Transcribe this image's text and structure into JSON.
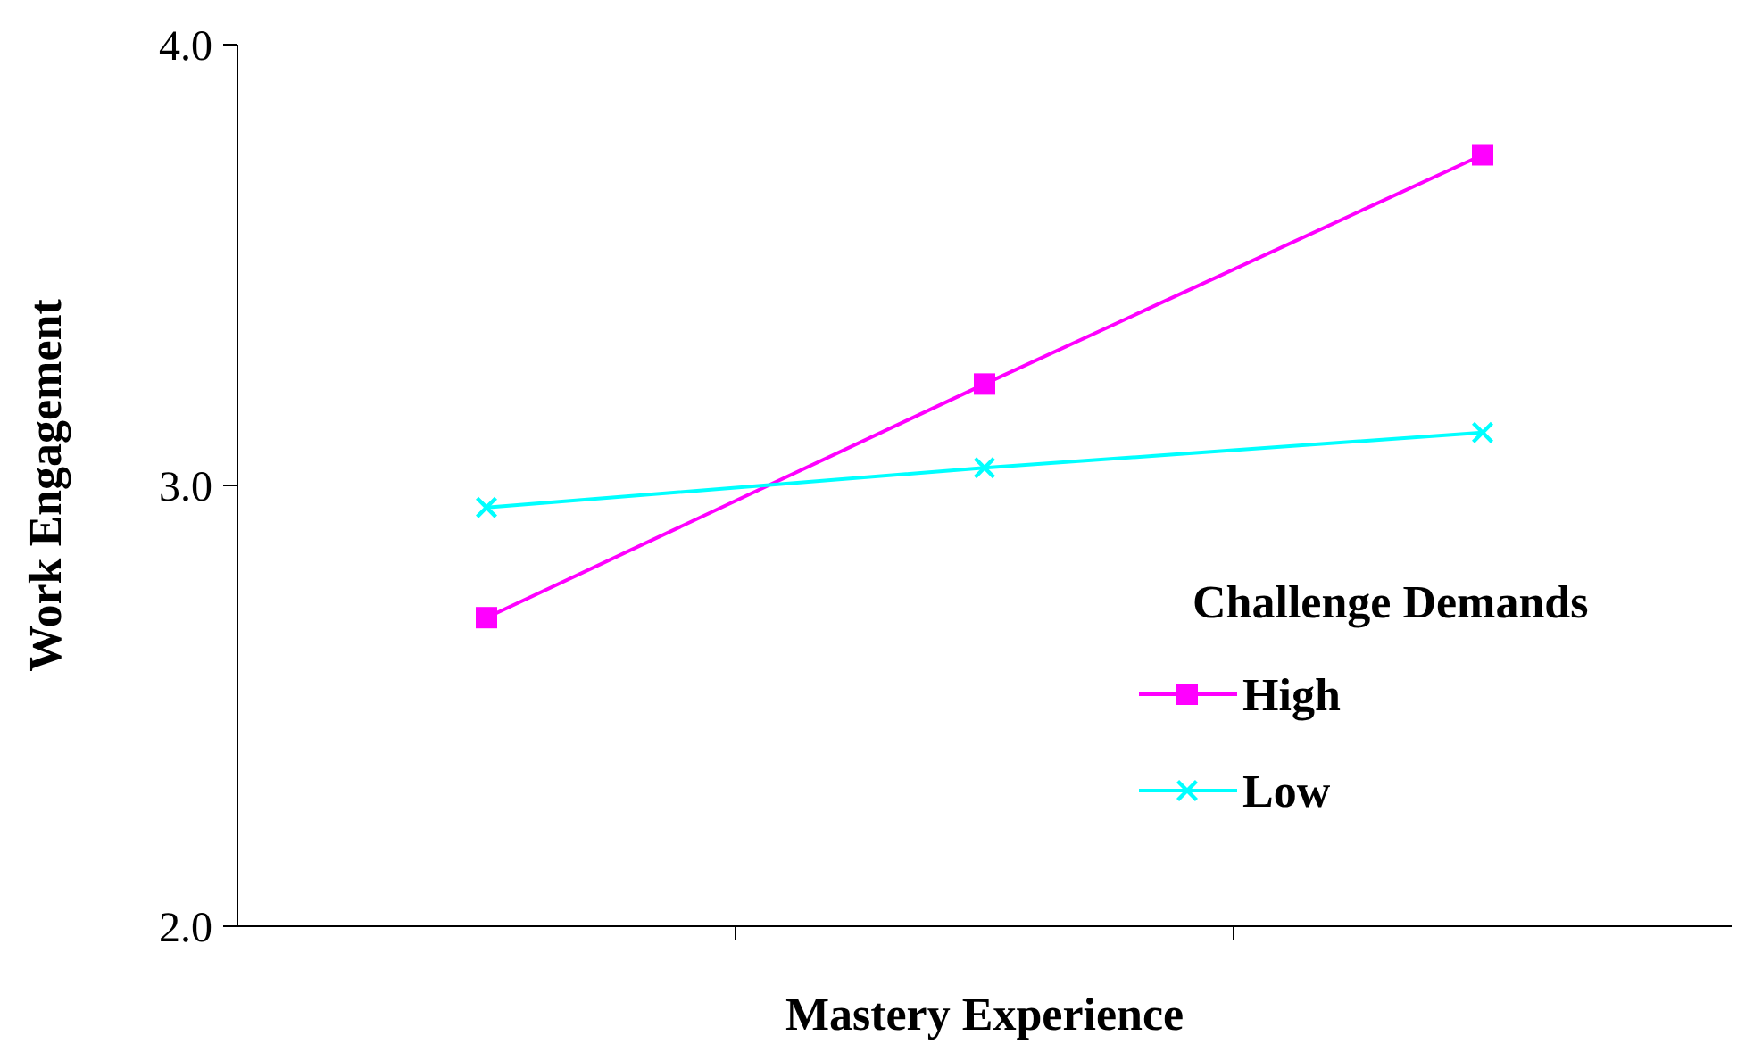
{
  "chart_data": {
    "type": "line",
    "xlabel": "Mastery Experience",
    "ylabel": "Work Engagement",
    "legend_title": "Challenge Demands",
    "categories": [
      null,
      null,
      null
    ],
    "series": [
      {
        "name": "High",
        "color": "#ff00ff",
        "marker": "square",
        "values": [
          2.7,
          3.23,
          3.75
        ]
      },
      {
        "name": "Low",
        "color": "#00ffff",
        "marker": "cross",
        "values": [
          2.95,
          3.04,
          3.12
        ]
      }
    ],
    "ylim": [
      2,
      4
    ],
    "yticks": [
      {
        "value": 2,
        "label": "2.0"
      },
      {
        "value": 3,
        "label": "3.0"
      },
      {
        "value": 4,
        "label": "4.0"
      }
    ],
    "grid": false,
    "legend": "right"
  }
}
